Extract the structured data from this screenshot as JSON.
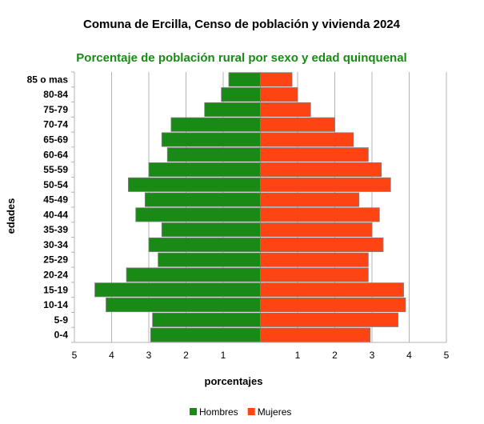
{
  "chart_data": {
    "type": "bar",
    "orientation": "horizontal-pyramid",
    "title": "Comuna de Ercilla, Censo de población y vivienda 2024",
    "subtitle": "Porcentaje de población rural por sexo y edad quinquenal",
    "xlabel": "porcentajes",
    "ylabel": "edades",
    "xlim": [
      -5,
      5
    ],
    "x_ticks": [
      "5",
      "4",
      "3",
      "2",
      "1",
      "",
      "1",
      "2",
      "3",
      "4",
      "5"
    ],
    "grid": true,
    "legend_position": "bottom",
    "categories": [
      "0-4",
      "5-9",
      "10-14",
      "15-19",
      "20-24",
      "25-29",
      "30-34",
      "35-39",
      "40-44",
      "45-49",
      "50-54",
      "55-59",
      "60-64",
      "65-69",
      "70-74",
      "75-79",
      "80-84",
      "85 o mas"
    ],
    "series": [
      {
        "name": "Hombres",
        "color": "#1a8a16",
        "side": "left",
        "values": [
          2.95,
          2.9,
          4.15,
          4.45,
          3.6,
          2.75,
          3.0,
          2.65,
          3.35,
          3.1,
          3.55,
          3.0,
          2.5,
          2.65,
          2.4,
          1.5,
          1.05,
          0.85
        ]
      },
      {
        "name": "Mujeres",
        "color": "#ff4414",
        "side": "right",
        "values": [
          2.95,
          3.7,
          3.9,
          3.85,
          2.9,
          2.9,
          3.3,
          3.0,
          3.2,
          2.65,
          3.5,
          3.25,
          2.9,
          2.5,
          2.0,
          1.35,
          1.0,
          0.85
        ]
      }
    ]
  },
  "colors": {
    "subtitle": "#1a8a16",
    "grid": "#b3b3b3",
    "bar_stroke": "#7f7f7f"
  }
}
